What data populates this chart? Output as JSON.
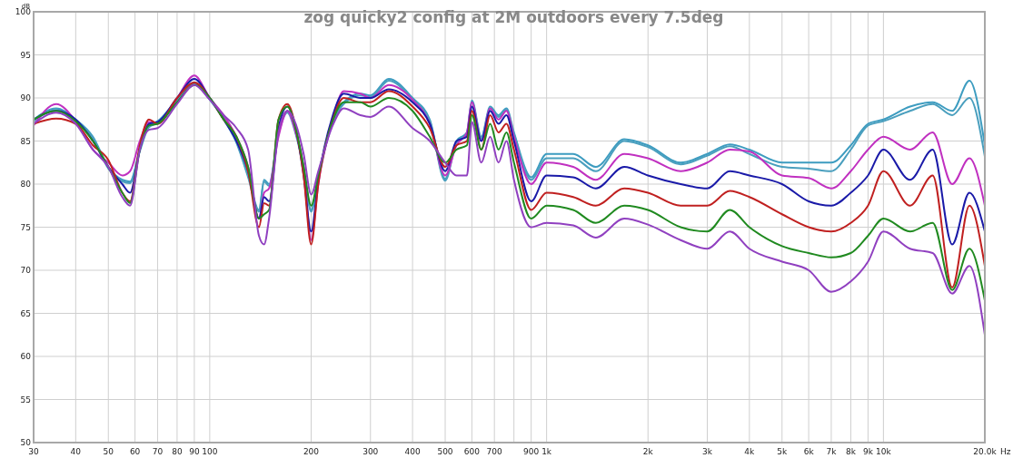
{
  "chart_data": {
    "type": "line",
    "title": "zog quicky2 config at 2M outdoors every 7.5deg",
    "xlabel": "Hz",
    "ylabel": "dB",
    "log": "x",
    "grid": true,
    "marker": "none",
    "line_style": "solid",
    "x": [
      30,
      35,
      40,
      45,
      50,
      55,
      58,
      62,
      66,
      70,
      80,
      90,
      100,
      110,
      120,
      130,
      140,
      145,
      150,
      160,
      170,
      180,
      190,
      200,
      210,
      230,
      250,
      280,
      300,
      340,
      400,
      450,
      500,
      540,
      580,
      600,
      640,
      680,
      720,
      760,
      800,
      900,
      1000,
      1200,
      1400,
      1700,
      2000,
      2500,
      3000,
      3500,
      4000,
      5000,
      6000,
      7000,
      8000,
      9000,
      10000,
      12000,
      14000,
      16000,
      18000,
      20000
    ],
    "xlim": [
      30,
      20000
    ],
    "xticks": [
      30,
      40,
      50,
      60,
      70,
      80,
      90,
      100,
      200,
      300,
      400,
      500,
      600,
      700,
      {
        "value": 800,
        "label": null
      },
      900,
      {
        "value": 1000,
        "label": "1k"
      },
      {
        "value": 2000,
        "label": "2k"
      },
      {
        "value": 3000,
        "label": "3k"
      },
      {
        "value": 4000,
        "label": "4k"
      },
      {
        "value": 5000,
        "label": "5k"
      },
      {
        "value": 6000,
        "label": "6k"
      },
      {
        "value": 7000,
        "label": "7k"
      },
      {
        "value": 8000,
        "label": "8k"
      },
      {
        "value": 9000,
        "label": "9k"
      },
      {
        "value": 10000,
        "label": "10k"
      },
      {
        "value": 20000,
        "label": "20.0k"
      }
    ],
    "ylim": [
      50,
      100
    ],
    "yticks": [
      50,
      55,
      60,
      65,
      70,
      75,
      80,
      85,
      90,
      95,
      100
    ],
    "series": [
      {
        "color": "#3d9cc0",
        "values": [
          87.5,
          88.8,
          87.5,
          85.5,
          82,
          80.5,
          80.3,
          84,
          86.8,
          87.3,
          89.8,
          91.8,
          90,
          87.7,
          85,
          81,
          77,
          80.5,
          80,
          86,
          88.5,
          86,
          82,
          77,
          81,
          87,
          89.5,
          90.5,
          90.3,
          92.2,
          90,
          87.5,
          80.6,
          85,
          86,
          89.7,
          85.5,
          89,
          88,
          88.8,
          86,
          80.8,
          83.5,
          83.5,
          82,
          85.2,
          84.5,
          82.5,
          83.5,
          84.6,
          84,
          82.5,
          82.5,
          82.5,
          84.5,
          87,
          87.5,
          89,
          89.5,
          88.5,
          92,
          84.5
        ]
      },
      {
        "color": "#4a9fbe",
        "values": [
          87.3,
          88.6,
          87.3,
          85.3,
          81.8,
          80.3,
          80.1,
          83.8,
          86.6,
          87.1,
          89.6,
          91.6,
          89.8,
          87.5,
          84.8,
          80.8,
          76.8,
          80.3,
          79.8,
          85.8,
          88.3,
          85.8,
          81.8,
          76.8,
          80.8,
          86.8,
          89.3,
          90.3,
          90.1,
          92,
          89.8,
          87.3,
          80.4,
          84.8,
          85.8,
          89.5,
          85.3,
          88.8,
          87.8,
          88.6,
          85.8,
          80.5,
          83,
          83,
          81.5,
          85,
          84.3,
          82.3,
          83.3,
          84.4,
          83.5,
          82,
          81.8,
          81.5,
          84,
          86.8,
          87.3,
          88.5,
          89.3,
          88,
          90,
          83.2
        ]
      },
      {
        "color": "#c030c0",
        "values": [
          86.8,
          89.3,
          87.3,
          84,
          82.5,
          81,
          81.5,
          85,
          87.2,
          87,
          90,
          92.6,
          90,
          88,
          85.5,
          82,
          76,
          79,
          79.5,
          85.5,
          88.5,
          86,
          82,
          73.5,
          80,
          87,
          90.8,
          90.5,
          90,
          91.5,
          89.8,
          87,
          81,
          84.5,
          86,
          89.5,
          85,
          88.8,
          87.5,
          88.5,
          85.5,
          80,
          82.5,
          82,
          80.5,
          83.5,
          83,
          81.5,
          82.5,
          84,
          83.8,
          81,
          80.7,
          79.5,
          81.5,
          84,
          85.5,
          84,
          86,
          80,
          83,
          77.5
        ]
      },
      {
        "color": "#1a1aa8",
        "values": [
          87.5,
          88.5,
          87.5,
          85,
          82,
          80,
          79,
          84,
          87,
          87.2,
          90,
          92.2,
          90,
          87.5,
          85,
          81.5,
          76,
          78.5,
          78,
          86.5,
          89,
          86.5,
          81,
          74.5,
          80.5,
          87.5,
          90.5,
          90,
          90,
          91,
          89.5,
          87,
          81.5,
          85,
          85.5,
          89,
          85,
          88.5,
          87,
          88,
          85,
          78,
          81,
          80.8,
          79.5,
          82,
          81,
          80,
          79.5,
          81.5,
          81,
          80,
          78,
          77.5,
          79,
          81,
          84,
          80.5,
          84,
          73,
          79,
          74.5
        ]
      },
      {
        "color": "#c02020",
        "values": [
          87,
          87.6,
          87,
          84.5,
          82.8,
          79,
          78,
          84.5,
          87.5,
          87,
          90,
          91.8,
          90,
          87.5,
          85.5,
          81.5,
          75,
          77.8,
          77.5,
          87.5,
          89.3,
          86.5,
          81,
          73,
          80,
          87,
          90,
          89.5,
          89.5,
          90.8,
          89,
          86.5,
          82,
          84.5,
          85,
          88.5,
          84,
          88,
          86,
          87,
          84,
          77,
          79,
          78.5,
          77.5,
          79.5,
          79,
          77.5,
          77.5,
          79.2,
          78.5,
          76.5,
          75,
          74.5,
          75.5,
          77.5,
          81.5,
          77.5,
          81,
          68,
          77.5,
          70.5
        ]
      },
      {
        "color": "#208a20",
        "values": [
          87.5,
          88.5,
          87.3,
          85,
          82,
          79,
          77.8,
          84,
          86.8,
          87,
          89.5,
          91.5,
          90,
          87.5,
          85.5,
          82,
          76,
          76.5,
          77,
          87.5,
          89,
          86.5,
          82,
          77.5,
          81,
          87,
          89.5,
          89.5,
          89,
          90,
          88.5,
          85.5,
          82.5,
          84,
          84.5,
          88,
          84,
          87,
          84,
          86,
          82.5,
          76,
          77.5,
          77,
          75.5,
          77.5,
          77,
          75,
          74.5,
          77,
          75,
          72.8,
          72,
          71.5,
          72,
          74,
          76,
          74.5,
          75.5,
          67.7,
          72.5,
          66.5
        ]
      },
      {
        "color": "#9040c0",
        "values": [
          87,
          88.3,
          87,
          84,
          82,
          78.5,
          77.5,
          84,
          86.3,
          86.5,
          89.3,
          91.5,
          89.8,
          88,
          86.5,
          84,
          74,
          73,
          76,
          86,
          88.5,
          87,
          83.5,
          78.8,
          81.5,
          86.5,
          88.8,
          88,
          87.8,
          89,
          86.5,
          85,
          82.5,
          81,
          81,
          87.2,
          82.5,
          85.5,
          82.5,
          85,
          80.5,
          75,
          75.5,
          75.2,
          73.8,
          76,
          75.3,
          73.5,
          72.5,
          74.5,
          72.5,
          71,
          70,
          67.5,
          68.7,
          71,
          74.5,
          72.5,
          72,
          67.3,
          70.5,
          62.5
        ]
      }
    ]
  }
}
